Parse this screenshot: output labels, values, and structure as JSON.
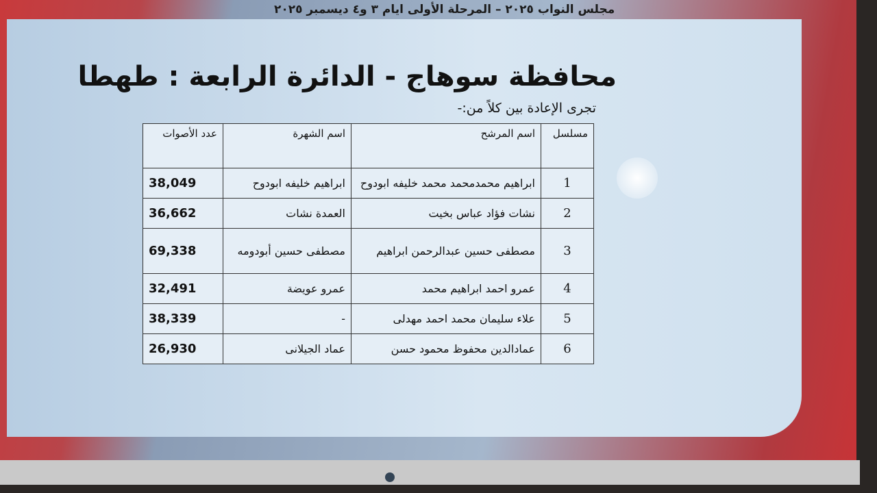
{
  "header": {
    "banner": "مجلس النواب ٢٠٢٥ – المرحلة الأولى ايام ٣ و٤ ديسمبر ٢٠٢٥"
  },
  "slide": {
    "title": "محافظة سوهاج - الدائرة الرابعة : طهطا",
    "subtitle": "تجرى الإعادة بين كلاً من:-"
  },
  "table": {
    "headers": {
      "serial": "مسلسل",
      "name": "اسم المرشح",
      "nickname": "اسم الشهرة",
      "votes": "عدد الأصوات"
    },
    "rows": [
      {
        "serial": "1",
        "name": "ابراهيم محمدمحمد محمد خليفه ابودوح",
        "nickname": "ابراهيم خليفه ابودوح",
        "votes": "38,049"
      },
      {
        "serial": "2",
        "name": "نشات فؤاد عباس بخيت",
        "nickname": "العمدة نشات",
        "votes": "36,662"
      },
      {
        "serial": "3",
        "name": "مصطفى حسين عبدالرحمن ابراهيم",
        "nickname": "مصطفى حسين أبودومه",
        "votes": "69,338"
      },
      {
        "serial": "4",
        "name": "عمرو احمد ابراهيم محمد",
        "nickname": "عمرو عويضة",
        "votes": "32,491"
      },
      {
        "serial": "5",
        "name": "علاء سليمان محمد احمد مهدلى",
        "nickname": "-",
        "votes": "38,339"
      },
      {
        "serial": "6",
        "name": "عمادالدين محفوظ محمود حسن",
        "nickname": "عماد الجيلانى",
        "votes": "26,930"
      }
    ]
  }
}
